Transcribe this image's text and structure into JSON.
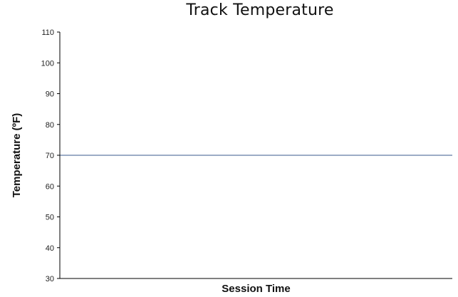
{
  "chart_data": {
    "type": "line",
    "title": "Track Temperature",
    "xlabel": "Session Time",
    "ylabel": "Temperature (ºF)",
    "ylim": [
      30,
      110
    ],
    "yticks": [
      30,
      40,
      50,
      60,
      70,
      80,
      90,
      100,
      110
    ],
    "xlim": [
      0,
      1
    ],
    "grid": false,
    "legend": "none",
    "series": [
      {
        "x": [
          0,
          1
        ],
        "values": [
          70,
          70
        ],
        "color": "#3a5a8c"
      }
    ],
    "axis_color": "#000000"
  }
}
